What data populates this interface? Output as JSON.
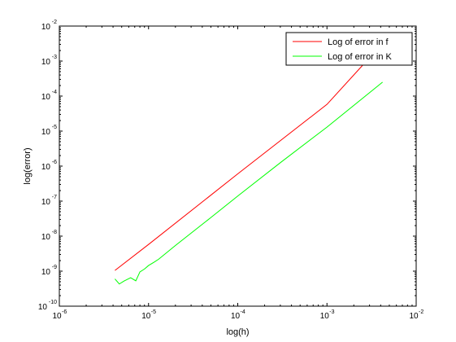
{
  "chart_data": {
    "type": "line",
    "title": "",
    "xlabel": "log(h)",
    "ylabel": "log(error)",
    "x_scale": "log",
    "y_scale": "log",
    "xlim": [
      1e-06,
      0.01
    ],
    "ylim": [
      1e-10,
      0.01
    ],
    "grid": false,
    "legend_position": "top-right",
    "x_ticks": [
      {
        "base": "10",
        "exp": "-6",
        "value": 1e-06
      },
      {
        "base": "10",
        "exp": "-5",
        "value": 1e-05
      },
      {
        "base": "10",
        "exp": "-4",
        "value": 0.0001
      },
      {
        "base": "10",
        "exp": "-3",
        "value": 0.001
      },
      {
        "base": "10",
        "exp": "-2",
        "value": 0.01
      }
    ],
    "y_ticks": [
      {
        "base": "10",
        "exp": "-10",
        "value": 1e-10
      },
      {
        "base": "10",
        "exp": "-9",
        "value": 1e-09
      },
      {
        "base": "10",
        "exp": "-8",
        "value": 1e-08
      },
      {
        "base": "10",
        "exp": "-7",
        "value": 1e-07
      },
      {
        "base": "10",
        "exp": "-6",
        "value": 1e-06
      },
      {
        "base": "10",
        "exp": "-5",
        "value": 1e-05
      },
      {
        "base": "10",
        "exp": "-4",
        "value": 0.0001
      },
      {
        "base": "10",
        "exp": "-3",
        "value": 0.001
      },
      {
        "base": "10",
        "exp": "-2",
        "value": 0.01
      }
    ],
    "series": [
      {
        "name": "Log of error in f",
        "color": "#ff0000",
        "x": [
          4.2e-06,
          1e-05,
          0.0001,
          0.001,
          0.0025
        ],
        "y": [
          1.05e-09,
          5.8e-09,
          6e-07,
          5.8e-05,
          0.00075
        ]
      },
      {
        "name": "Log of error in K",
        "color": "#00ff00",
        "x": [
          4.2e-06,
          4.7e-06,
          5.3e-06,
          6.3e-06,
          7.2e-06,
          8e-06,
          9e-06,
          1e-05,
          1.15e-05,
          1.3e-05,
          2e-05,
          5e-05,
          0.0001,
          0.0003,
          0.001,
          0.0042
        ],
        "y": [
          6e-10,
          4.3e-10,
          5.2e-10,
          6.5e-10,
          5.3e-10,
          9.5e-10,
          1.15e-09,
          1.45e-09,
          1.8e-09,
          2.2e-09,
          5.4e-09,
          3.4e-08,
          1.4e-07,
          1.25e-06,
          1.3e-05,
          0.00025
        ]
      }
    ]
  }
}
